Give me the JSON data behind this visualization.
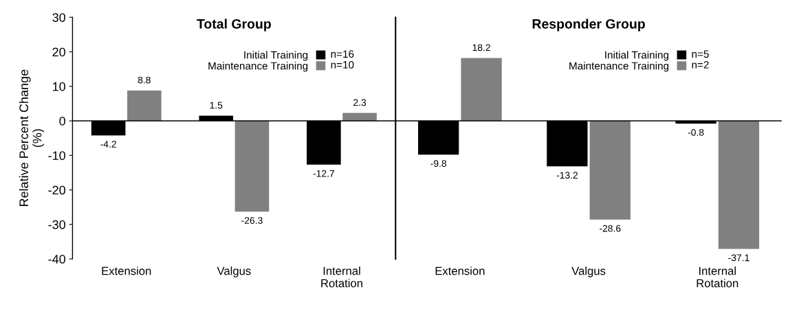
{
  "chart_data": [
    {
      "type": "bar",
      "title": "Total Group",
      "ylabel": "Relative Percent Change\n(%)",
      "categories": [
        "Extension",
        "Valgus",
        "Internal\nRotation"
      ],
      "series": [
        {
          "name": "Initial Training",
          "color": "#000000",
          "values": [
            -4.2,
            1.5,
            -12.7
          ]
        },
        {
          "name": "Maintenance Training",
          "color": "#808080",
          "values": [
            8.8,
            -26.3,
            2.3
          ]
        }
      ],
      "annotations": [
        "n=16",
        "n=10"
      ],
      "ref_lines": [
        {
          "axis": "y",
          "value": 0,
          "color": "#000000"
        }
      ],
      "ylim": [
        -40,
        30
      ],
      "yticks": [
        -40,
        -30,
        -20,
        -10,
        0,
        10,
        20,
        30
      ],
      "data_labels": true,
      "legend": "top",
      "grid": false
    },
    {
      "type": "bar",
      "title": "Responder Group",
      "categories": [
        "Extension",
        "Valgus",
        "Internal\nRotation"
      ],
      "series": [
        {
          "name": "Initial Training",
          "color": "#000000",
          "values": [
            -9.8,
            -13.2,
            -0.8
          ]
        },
        {
          "name": "Maintenance Training",
          "color": "#808080",
          "values": [
            18.2,
            -28.6,
            -37.1
          ]
        }
      ],
      "annotations": [
        "n=5",
        "n=2"
      ],
      "ref_lines": [
        {
          "axis": "y",
          "value": 0,
          "color": "#000000"
        }
      ],
      "ylim": [
        -40,
        30
      ],
      "yticks": [
        -40,
        -30,
        -20,
        -10,
        0,
        10,
        20,
        30
      ],
      "tick_labels": "x",
      "data_labels": true,
      "legend": "top",
      "grid": false
    }
  ]
}
